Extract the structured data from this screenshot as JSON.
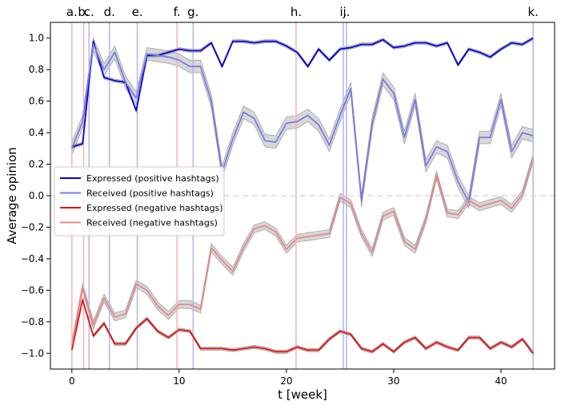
{
  "chart_data": {
    "type": "line",
    "xlabel": "t [week]",
    "ylabel": "Average opinion",
    "xlim": [
      -2,
      45
    ],
    "ylim": [
      -1.1,
      1.1
    ],
    "x_ticks": [
      0,
      10,
      20,
      30,
      40
    ],
    "y_ticks": [
      -1.0,
      -0.8,
      -0.6,
      -0.4,
      -0.2,
      0.0,
      0.2,
      0.4,
      0.6,
      0.8,
      1.0
    ],
    "reference_line": {
      "y": 0.0,
      "style": "dashed",
      "color": "#d8d8d8"
    },
    "legend_position": "center-left",
    "event_markers": [
      {
        "label": "a.",
        "x": 0.0,
        "color": "#f2b8b8"
      },
      {
        "label": "b.",
        "x": 1.1,
        "color": "#f2b8b8"
      },
      {
        "label": "c.",
        "x": 1.6,
        "color": "#b8b8f2"
      },
      {
        "label": "d.",
        "x": 3.5,
        "color": "#b8b8f2"
      },
      {
        "label": "e.",
        "x": 6.1,
        "color": "#b8b8f2"
      },
      {
        "label": "f.",
        "x": 9.8,
        "color": "#f2b8b8"
      },
      {
        "label": "g.",
        "x": 11.3,
        "color": "#b8b8f2"
      },
      {
        "label": "h.",
        "x": 20.9,
        "color": "#f2b8b8"
      },
      {
        "label": "i.",
        "x": 25.3,
        "color": "#b8b8f2"
      },
      {
        "label": "j.",
        "x": 25.6,
        "color": "#b8b8f2"
      },
      {
        "label": "k.",
        "x": 43.0,
        "color": "#b8b8f2"
      }
    ],
    "x": [
      0,
      1,
      2,
      3,
      4,
      5,
      6,
      7,
      8,
      9,
      10,
      11,
      12,
      13,
      14,
      15,
      16,
      17,
      18,
      19,
      20,
      21,
      22,
      23,
      24,
      25,
      26,
      27,
      28,
      29,
      30,
      31,
      32,
      33,
      34,
      35,
      36,
      37,
      38,
      39,
      40,
      41,
      42,
      43
    ],
    "series": [
      {
        "name": "Expressed (positive hashtags)",
        "color": "#0000dd",
        "opacity": 1.0,
        "x": [
          0,
          1,
          2,
          3,
          4,
          5,
          6,
          7,
          8,
          9,
          10,
          11,
          12,
          13,
          14,
          15,
          16,
          17,
          18,
          19,
          20,
          21,
          22,
          23,
          24,
          25,
          26,
          27,
          28,
          29,
          30,
          31,
          32,
          33,
          34,
          35,
          36,
          37,
          38,
          39,
          40,
          41,
          42,
          43
        ],
        "values": [
          0.31,
          0.33,
          0.98,
          0.75,
          0.73,
          0.72,
          0.54,
          0.89,
          0.89,
          0.91,
          0.93,
          0.92,
          0.92,
          0.97,
          0.82,
          0.98,
          0.98,
          0.97,
          0.98,
          0.98,
          0.95,
          0.91,
          0.82,
          0.93,
          0.86,
          0.93,
          0.94,
          0.96,
          0.96,
          0.99,
          0.94,
          0.95,
          0.97,
          0.97,
          0.95,
          0.97,
          0.83,
          0.93,
          0.91,
          0.88,
          0.93,
          0.97,
          0.96,
          1.0
        ],
        "band": 0.01
      },
      {
        "name": "Received (positive hashtags)",
        "color": "#7a7ae6",
        "opacity": 1.0,
        "x": [
          0,
          1,
          2,
          3,
          4,
          5,
          6,
          7,
          8,
          9,
          10,
          11,
          12,
          13,
          14,
          15,
          16,
          17,
          18,
          19,
          20,
          21,
          22,
          23,
          24,
          25,
          26,
          27,
          28,
          29,
          30,
          31,
          32,
          33,
          34,
          35,
          36,
          37,
          38,
          39,
          40,
          41,
          42,
          43
        ],
        "values": [
          0.3,
          0.47,
          0.96,
          0.8,
          0.91,
          0.72,
          0.62,
          0.9,
          0.89,
          0.88,
          0.86,
          0.82,
          0.82,
          0.6,
          0.15,
          0.36,
          0.53,
          0.49,
          0.35,
          0.34,
          0.46,
          0.47,
          0.51,
          0.45,
          0.32,
          0.51,
          0.68,
          -0.03,
          0.46,
          0.74,
          0.65,
          0.37,
          0.61,
          0.19,
          0.31,
          0.28,
          0.09,
          -0.04,
          0.37,
          0.37,
          0.61,
          0.28,
          0.4,
          0.38
        ],
        "band": 0.04
      },
      {
        "name": "Expressed (negative hashtags)",
        "color": "#e61010",
        "opacity": 1.0,
        "x": [
          0,
          1,
          2,
          3,
          4,
          5,
          6,
          7,
          8,
          9,
          10,
          11,
          12,
          13,
          14,
          15,
          16,
          17,
          18,
          19,
          20,
          21,
          22,
          23,
          24,
          25,
          26,
          27,
          28,
          29,
          30,
          31,
          32,
          33,
          34,
          35,
          36,
          37,
          38,
          39,
          40,
          41,
          42,
          43
        ],
        "values": [
          -0.98,
          -0.66,
          -0.89,
          -0.81,
          -0.94,
          -0.94,
          -0.84,
          -0.78,
          -0.86,
          -0.9,
          -0.85,
          -0.86,
          -0.97,
          -0.97,
          -0.97,
          -0.98,
          -0.97,
          -0.96,
          -0.97,
          -0.99,
          -0.99,
          -0.96,
          -0.98,
          -0.98,
          -0.91,
          -0.86,
          -0.88,
          -0.97,
          -0.99,
          -0.94,
          -0.99,
          -0.93,
          -0.9,
          -0.97,
          -0.93,
          -0.96,
          -0.98,
          -0.9,
          -0.9,
          -0.97,
          -0.93,
          -0.96,
          -0.91,
          -1.0
        ],
        "band": 0.01
      },
      {
        "name": "Received (negative hashtags)",
        "color": "#e58a8a",
        "opacity": 1.0,
        "x": [
          0,
          1,
          2,
          3,
          4,
          5,
          6,
          7,
          8,
          9,
          10,
          11,
          12,
          13,
          14,
          15,
          16,
          17,
          18,
          19,
          20,
          21,
          22,
          23,
          24,
          25,
          26,
          27,
          28,
          29,
          30,
          31,
          32,
          33,
          34,
          35,
          36,
          37,
          38,
          39,
          40,
          41,
          42,
          43
        ],
        "values": [
          -0.95,
          -0.58,
          -0.82,
          -0.65,
          -0.77,
          -0.75,
          -0.56,
          -0.6,
          -0.7,
          -0.76,
          -0.69,
          -0.69,
          -0.72,
          -0.33,
          -0.41,
          -0.48,
          -0.33,
          -0.21,
          -0.19,
          -0.23,
          -0.34,
          -0.27,
          -0.26,
          -0.25,
          -0.24,
          -0.01,
          -0.05,
          -0.24,
          -0.36,
          -0.13,
          -0.1,
          -0.29,
          -0.34,
          -0.15,
          0.13,
          -0.11,
          -0.12,
          -0.03,
          -0.07,
          -0.05,
          -0.03,
          -0.08,
          0.01,
          0.24
        ],
        "band": 0.025
      }
    ]
  }
}
